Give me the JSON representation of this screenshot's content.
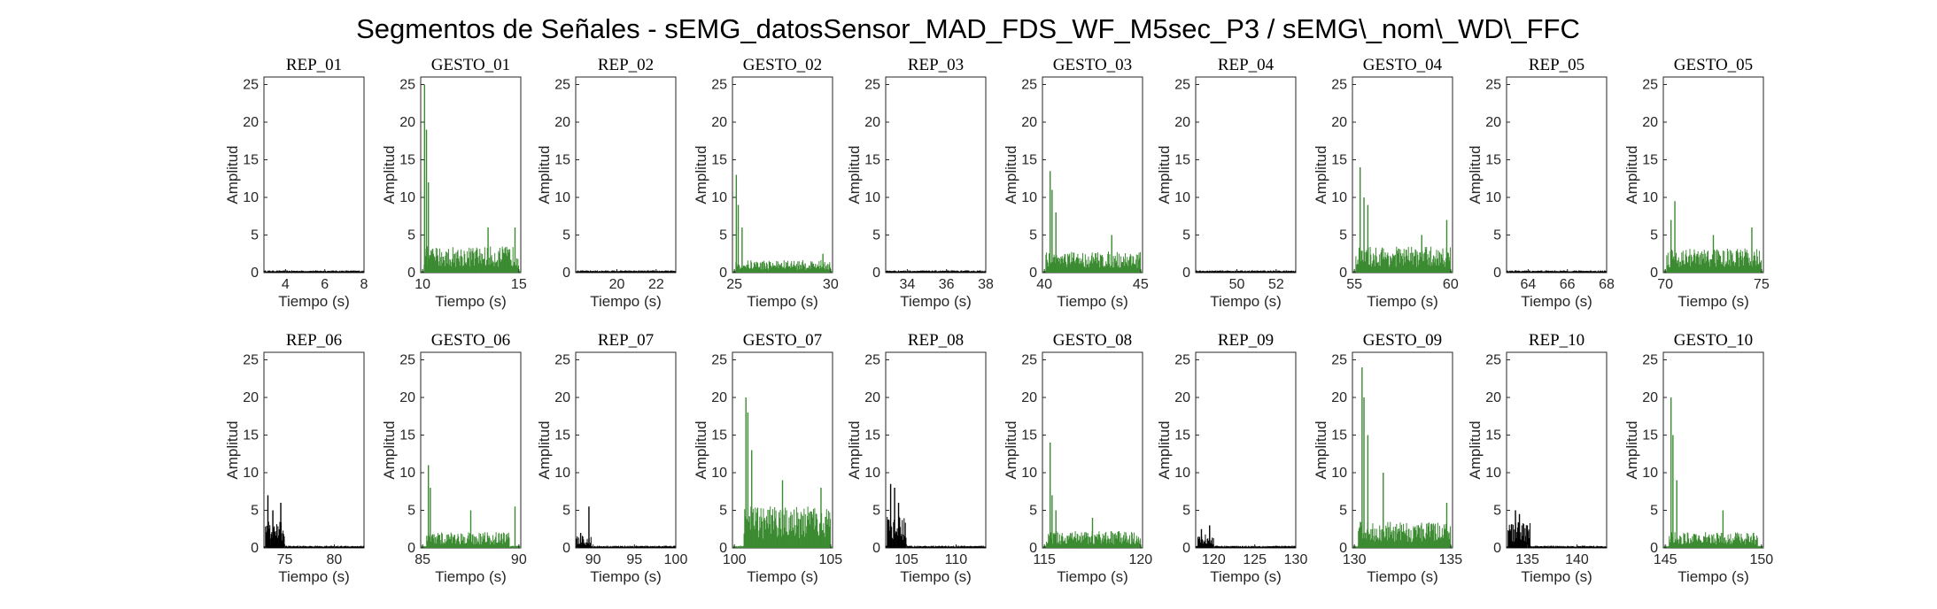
{
  "title": "Segmentos de Señales - sEMG_datosSensor_MAD_FDS_WF_M5sec_P3 / sEMG\\_nom\\_WD\\_FFC",
  "colors": {
    "rep": "#000000",
    "gesto": "#3a8a30",
    "axis": "#262626"
  },
  "chart_data": [
    {
      "title": "REP_01",
      "type": "bar",
      "xlim": [
        2.9,
        8
      ],
      "ylim": [
        0,
        26
      ],
      "xticks": [
        4,
        6,
        8
      ],
      "yticks": [
        0,
        5,
        10,
        15,
        20,
        25
      ],
      "xlabel": "Tiempo (s)",
      "ylabel": "Amplitud",
      "series_color": "rep",
      "x": [
        2.9,
        8
      ],
      "baseline": 0.2,
      "bursts": []
    },
    {
      "title": "GESTO_01",
      "type": "bar",
      "xlim": [
        9.9,
        15.1
      ],
      "ylim": [
        0,
        26
      ],
      "xticks": [
        10,
        15
      ],
      "yticks": [
        0,
        5,
        10,
        15,
        20,
        25
      ],
      "xlabel": "Tiempo (s)",
      "ylabel": "Amplitud",
      "series_color": "gesto",
      "x": [
        9.9,
        15.1
      ],
      "baseline": 2.5,
      "bursts": [
        [
          10.1,
          25
        ],
        [
          10.2,
          19
        ],
        [
          10.3,
          12
        ],
        [
          13.4,
          6
        ],
        [
          14.8,
          6
        ]
      ]
    },
    {
      "title": "REP_02",
      "type": "bar",
      "xlim": [
        17.9,
        23
      ],
      "ylim": [
        0,
        26
      ],
      "xticks": [
        20,
        22
      ],
      "yticks": [
        0,
        5,
        10,
        15,
        20,
        25
      ],
      "xlabel": "Tiempo (s)",
      "ylabel": "Amplitud",
      "series_color": "rep",
      "x": [
        17.9,
        23
      ],
      "baseline": 0.2,
      "bursts": []
    },
    {
      "title": "GESTO_02",
      "type": "bar",
      "xlim": [
        24.9,
        30.1
      ],
      "ylim": [
        0,
        26
      ],
      "xticks": [
        25,
        30
      ],
      "yticks": [
        0,
        5,
        10,
        15,
        20,
        25
      ],
      "xlabel": "Tiempo (s)",
      "ylabel": "Amplitud",
      "series_color": "gesto",
      "x": [
        24.9,
        30.1
      ],
      "baseline": 1.2,
      "bursts": [
        [
          25.1,
          13
        ],
        [
          25.2,
          9
        ],
        [
          25.4,
          6
        ],
        [
          29.6,
          2.5
        ]
      ]
    },
    {
      "title": "REP_03",
      "type": "bar",
      "xlim": [
        32.9,
        38
      ],
      "ylim": [
        0,
        26
      ],
      "xticks": [
        34,
        36,
        38
      ],
      "yticks": [
        0,
        5,
        10,
        15,
        20,
        25
      ],
      "xlabel": "Tiempo (s)",
      "ylabel": "Amplitud",
      "series_color": "rep",
      "x": [
        32.9,
        38
      ],
      "baseline": 0.2,
      "bursts": []
    },
    {
      "title": "GESTO_03",
      "type": "bar",
      "xlim": [
        39.9,
        45.1
      ],
      "ylim": [
        0,
        26
      ],
      "xticks": [
        40,
        45
      ],
      "yticks": [
        0,
        5,
        10,
        15,
        20,
        25
      ],
      "xlabel": "Tiempo (s)",
      "ylabel": "Amplitud",
      "series_color": "gesto",
      "x": [
        39.9,
        45.1
      ],
      "baseline": 2.0,
      "bursts": [
        [
          40.3,
          13.5
        ],
        [
          40.4,
          11
        ],
        [
          40.6,
          8
        ],
        [
          43.5,
          5
        ]
      ]
    },
    {
      "title": "REP_04",
      "type": "bar",
      "xlim": [
        47.9,
        53
      ],
      "ylim": [
        0,
        26
      ],
      "xticks": [
        50,
        52
      ],
      "yticks": [
        0,
        5,
        10,
        15,
        20,
        25
      ],
      "xlabel": "Tiempo (s)",
      "ylabel": "Amplitud",
      "series_color": "rep",
      "x": [
        47.9,
        53
      ],
      "baseline": 0.2,
      "bursts": []
    },
    {
      "title": "GESTO_04",
      "type": "bar",
      "xlim": [
        54.9,
        60.1
      ],
      "ylim": [
        0,
        26
      ],
      "xticks": [
        55,
        60
      ],
      "yticks": [
        0,
        5,
        10,
        15,
        20,
        25
      ],
      "xlabel": "Tiempo (s)",
      "ylabel": "Amplitud",
      "series_color": "gesto",
      "x": [
        54.9,
        60.1
      ],
      "baseline": 2.5,
      "bursts": [
        [
          55.3,
          14
        ],
        [
          55.5,
          10
        ],
        [
          55.7,
          9
        ],
        [
          59.8,
          7
        ],
        [
          58.5,
          5
        ]
      ]
    },
    {
      "title": "REP_05",
      "type": "bar",
      "xlim": [
        62.9,
        68
      ],
      "ylim": [
        0,
        26
      ],
      "xticks": [
        64,
        66,
        68
      ],
      "yticks": [
        0,
        5,
        10,
        15,
        20,
        25
      ],
      "xlabel": "Tiempo (s)",
      "ylabel": "Amplitud",
      "series_color": "rep",
      "x": [
        62.9,
        68
      ],
      "baseline": 0.2,
      "bursts": []
    },
    {
      "title": "GESTO_05",
      "type": "bar",
      "xlim": [
        69.9,
        75.1
      ],
      "ylim": [
        0,
        26
      ],
      "xticks": [
        70,
        75
      ],
      "yticks": [
        0,
        5,
        10,
        15,
        20,
        25
      ],
      "xlabel": "Tiempo (s)",
      "ylabel": "Amplitud",
      "series_color": "gesto",
      "x": [
        69.9,
        75.1
      ],
      "baseline": 2.3,
      "bursts": [
        [
          70.5,
          9.5
        ],
        [
          70.3,
          7
        ],
        [
          72.5,
          5
        ],
        [
          74.5,
          6
        ]
      ]
    },
    {
      "title": "REP_06",
      "type": "bar",
      "xlim": [
        72.9,
        83
      ],
      "ylim": [
        0,
        26
      ],
      "xticks": [
        75,
        80
      ],
      "yticks": [
        0,
        5,
        10,
        15,
        20,
        25
      ],
      "xlabel": "Tiempo (s)",
      "ylabel": "Amplitud",
      "series_color": "rep",
      "x": [
        72.9,
        83
      ],
      "baseline": 0.2,
      "bursts": [
        [
          73.3,
          7
        ],
        [
          73.8,
          5
        ],
        [
          74.6,
          6
        ]
      ],
      "active": [
        73.0,
        75.0,
        2.5
      ]
    },
    {
      "title": "GESTO_06",
      "type": "bar",
      "xlim": [
        84.9,
        90.1
      ],
      "ylim": [
        0,
        26
      ],
      "xticks": [
        85,
        90
      ],
      "yticks": [
        0,
        5,
        10,
        15,
        20,
        25
      ],
      "xlabel": "Tiempo (s)",
      "ylabel": "Amplitud",
      "series_color": "gesto",
      "x": [
        84.9,
        90.1
      ],
      "baseline": 1.5,
      "bursts": [
        [
          85.3,
          11
        ],
        [
          85.4,
          8
        ],
        [
          87.5,
          5
        ],
        [
          89.8,
          5.5
        ]
      ],
      "active": [
        85.2,
        89.5,
        1.5
      ]
    },
    {
      "title": "REP_07",
      "type": "bar",
      "xlim": [
        87.9,
        100
      ],
      "ylim": [
        0,
        26
      ],
      "xticks": [
        90,
        95,
        100
      ],
      "yticks": [
        0,
        5,
        10,
        15,
        20,
        25
      ],
      "xlabel": "Tiempo (s)",
      "ylabel": "Amplitud",
      "series_color": "rep",
      "x": [
        87.9,
        100
      ],
      "baseline": 0.2,
      "bursts": [
        [
          89.5,
          5.5
        ],
        [
          88.5,
          2
        ]
      ],
      "active": [
        88.0,
        89.8,
        1.2
      ]
    },
    {
      "title": "GESTO_07",
      "type": "bar",
      "xlim": [
        99.9,
        105.1
      ],
      "ylim": [
        0,
        26
      ],
      "xticks": [
        100,
        105
      ],
      "yticks": [
        0,
        5,
        10,
        15,
        20,
        25
      ],
      "xlabel": "Tiempo (s)",
      "ylabel": "Amplitud",
      "series_color": "gesto",
      "x": [
        99.9,
        105.1
      ],
      "baseline": 4.0,
      "bursts": [
        [
          100.6,
          20
        ],
        [
          100.7,
          18
        ],
        [
          100.9,
          13
        ],
        [
          102.5,
          9
        ],
        [
          104.5,
          8
        ]
      ],
      "active": [
        100.5,
        105.0,
        4.0
      ]
    },
    {
      "title": "REP_08",
      "type": "bar",
      "xlim": [
        102.9,
        113
      ],
      "ylim": [
        0,
        26
      ],
      "xticks": [
        105,
        110
      ],
      "yticks": [
        0,
        5,
        10,
        15,
        20,
        25
      ],
      "xlabel": "Tiempo (s)",
      "ylabel": "Amplitud",
      "series_color": "rep",
      "x": [
        102.9,
        113
      ],
      "baseline": 0.2,
      "bursts": [
        [
          103.4,
          8.5
        ],
        [
          103.8,
          8
        ],
        [
          104.2,
          6
        ]
      ],
      "active": [
        103.0,
        105.0,
        3.0
      ]
    },
    {
      "title": "GESTO_08",
      "type": "bar",
      "xlim": [
        114.9,
        120.1
      ],
      "ylim": [
        0,
        26
      ],
      "xticks": [
        115,
        120
      ],
      "yticks": [
        0,
        5,
        10,
        15,
        20,
        25
      ],
      "xlabel": "Tiempo (s)",
      "ylabel": "Amplitud",
      "series_color": "gesto",
      "x": [
        114.9,
        120.1
      ],
      "baseline": 1.6,
      "bursts": [
        [
          115.3,
          14
        ],
        [
          115.4,
          7
        ],
        [
          115.6,
          5
        ],
        [
          117.5,
          4
        ]
      ],
      "active": [
        115.1,
        120.0,
        1.6
      ]
    },
    {
      "title": "REP_09",
      "type": "bar",
      "xlim": [
        117.8,
        130
      ],
      "ylim": [
        0,
        26
      ],
      "xticks": [
        120,
        125,
        130
      ],
      "yticks": [
        0,
        5,
        10,
        15,
        20,
        25
      ],
      "xlabel": "Tiempo (s)",
      "ylabel": "Amplitud",
      "series_color": "rep",
      "x": [
        117.8,
        130
      ],
      "baseline": 0.2,
      "bursts": [
        [
          119.5,
          3
        ],
        [
          118.5,
          2.5
        ]
      ],
      "active": [
        118.0,
        120.0,
        1.3
      ]
    },
    {
      "title": "GESTO_09",
      "type": "bar",
      "xlim": [
        129.9,
        135.1
      ],
      "ylim": [
        0,
        26
      ],
      "xticks": [
        130,
        135
      ],
      "yticks": [
        0,
        5,
        10,
        15,
        20,
        25
      ],
      "xlabel": "Tiempo (s)",
      "ylabel": "Amplitud",
      "series_color": "gesto",
      "x": [
        129.9,
        135.1
      ],
      "baseline": 2.5,
      "bursts": [
        [
          130.4,
          24
        ],
        [
          130.5,
          20
        ],
        [
          130.7,
          15
        ],
        [
          131.5,
          10
        ],
        [
          134.8,
          6
        ]
      ],
      "active": [
        130.2,
        135.0,
        2.5
      ]
    },
    {
      "title": "REP_10",
      "type": "bar",
      "xlim": [
        132.9,
        143
      ],
      "ylim": [
        0,
        26
      ],
      "xticks": [
        135,
        140
      ],
      "yticks": [
        0,
        5,
        10,
        15,
        20,
        25
      ],
      "xlabel": "Tiempo (s)",
      "ylabel": "Amplitud",
      "series_color": "rep",
      "x": [
        132.9,
        143
      ],
      "baseline": 0.2,
      "bursts": [
        [
          133.8,
          5
        ],
        [
          134.2,
          4.5
        ],
        [
          135.0,
          3
        ]
      ],
      "active": [
        133.0,
        135.3,
        2.5
      ]
    },
    {
      "title": "GESTO_10",
      "type": "bar",
      "xlim": [
        144.9,
        150.1
      ],
      "ylim": [
        0,
        26
      ],
      "xticks": [
        145,
        150
      ],
      "yticks": [
        0,
        5,
        10,
        15,
        20,
        25
      ],
      "xlabel": "Tiempo (s)",
      "ylabel": "Amplitud",
      "series_color": "gesto",
      "x": [
        144.9,
        150.1
      ],
      "baseline": 1.5,
      "bursts": [
        [
          145.3,
          20
        ],
        [
          145.4,
          15
        ],
        [
          145.6,
          9
        ],
        [
          148.0,
          5
        ]
      ],
      "active": [
        145.2,
        149.8,
        1.5
      ]
    }
  ]
}
